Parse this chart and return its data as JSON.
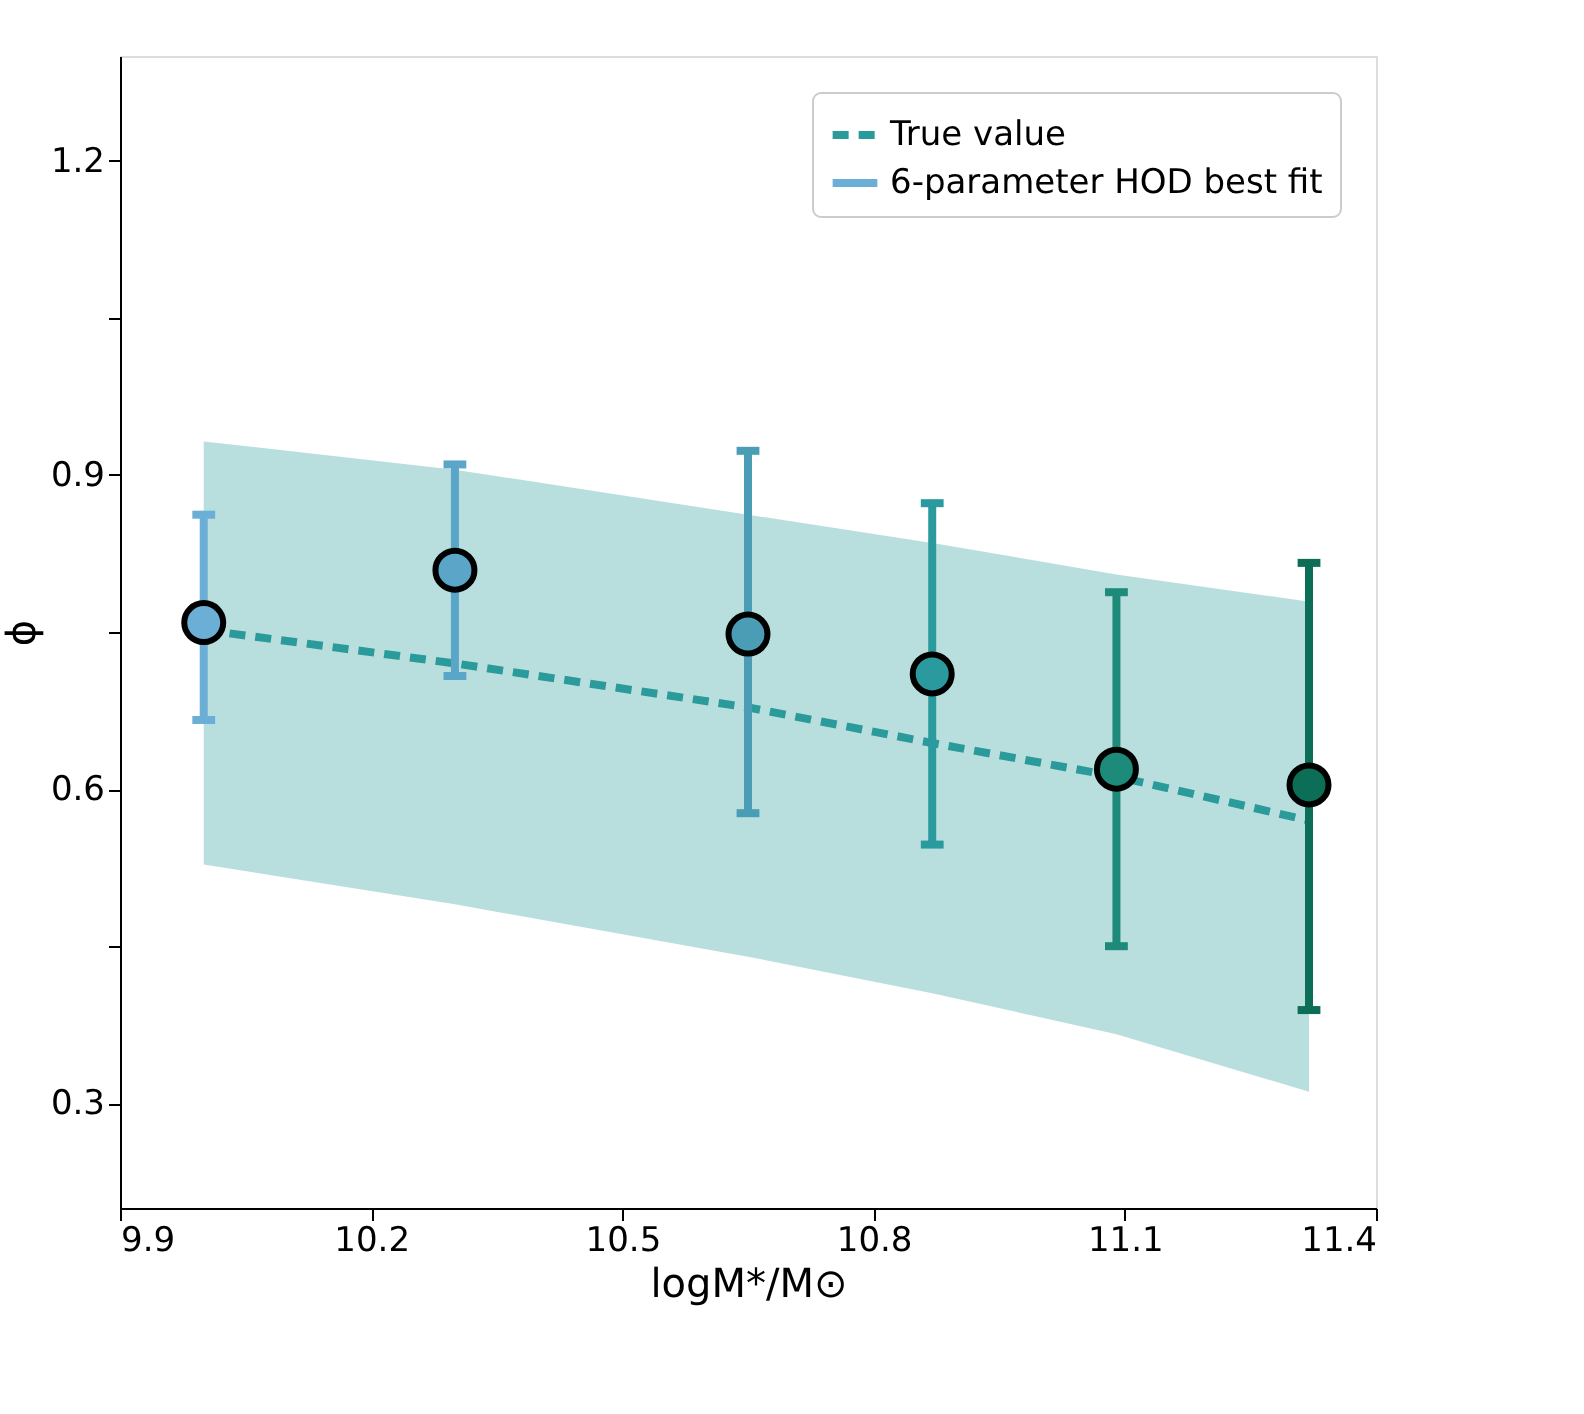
{
  "chart_data": {
    "type": "scatter",
    "xlabel": "logM*/M⊙",
    "ylabel": "ϕ",
    "xlim": [
      9.9,
      11.4
    ],
    "xticks": [
      9.9,
      10.2,
      10.5,
      10.8,
      11.1,
      11.4
    ],
    "ylim": [
      0.2,
      1.3
    ],
    "yticks": [
      0.3,
      {
        "value": 0.45,
        "label": null
      },
      0.6,
      {
        "value": 0.75,
        "label": null
      },
      0.9,
      {
        "value": 1.05,
        "label": null
      },
      1.2
    ],
    "grid": false,
    "legend": "top right",
    "series": [
      {
        "name": "True value",
        "type": "line",
        "line_style": "dashed",
        "marker": "none",
        "color": "#2a9a9a",
        "x": [
          10.0,
          10.3,
          10.65,
          10.87,
          11.09,
          11.32
        ],
        "values": [
          0.752,
          0.72,
          0.678,
          0.644,
          0.612,
          0.57
        ],
        "lower": [
          0.528,
          0.49,
          0.44,
          0.405,
          0.366,
          0.311
        ],
        "upper": [
          0.932,
          0.905,
          0.862,
          0.835,
          0.805,
          0.779
        ]
      },
      {
        "name": "6-parameter HOD best fit",
        "marker": "circle",
        "color": "#6baed6",
        "colors": [
          "#6baed6",
          "#5aa5c8",
          "#4a9db5",
          "#2a9a9e",
          "#1d8a7a",
          "#0c6e57"
        ],
        "x": [
          10.0,
          10.3,
          10.65,
          10.87,
          11.09,
          11.32
        ],
        "values": [
          0.759,
          0.809,
          0.748,
          0.71,
          0.619,
          0.604
        ],
        "errors": [
          [
            0.666,
            0.862
          ],
          [
            0.708,
            0.91
          ],
          [
            0.577,
            0.923
          ],
          [
            0.547,
            0.873
          ],
          [
            0.45,
            0.788
          ],
          [
            0.389,
            0.816
          ]
        ]
      }
    ]
  }
}
